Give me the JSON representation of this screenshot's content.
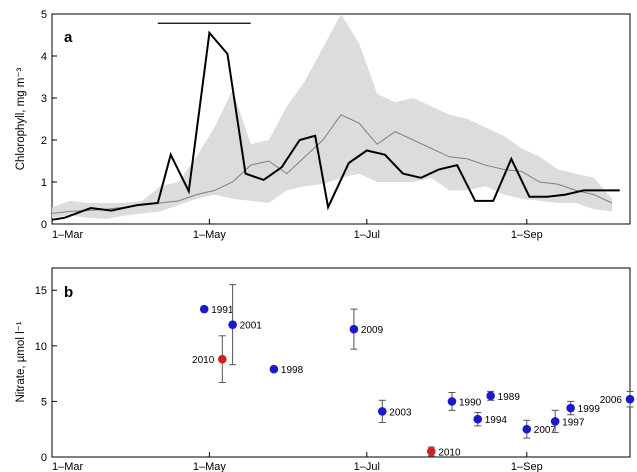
{
  "chart_data": [
    {
      "type": "line",
      "panel_label": "a",
      "ylabel": "Chlorophyll, mg m⁻³",
      "ylim": [
        0,
        5
      ],
      "yticks": [
        "0",
        "1",
        "2",
        "3",
        "4",
        "5"
      ],
      "xticks": [
        "1–Mar",
        "1–May",
        "1–Jul",
        "1–Sep"
      ],
      "xtick_days": [
        0,
        61,
        122,
        184
      ],
      "xlim_days": [
        0,
        224
      ],
      "bar_days": [
        41,
        77
      ],
      "bar_y": 4.78,
      "envelope": {
        "x_days": [
          0,
          7,
          14,
          21,
          28,
          35,
          42,
          49,
          56,
          63,
          70,
          77,
          84,
          91,
          98,
          105,
          112,
          119,
          126,
          133,
          140,
          147,
          154,
          161,
          168,
          175,
          182,
          189,
          196,
          203,
          210,
          217
        ],
        "upper": [
          0.4,
          0.55,
          0.5,
          0.5,
          0.5,
          0.55,
          0.9,
          1.0,
          1.6,
          2.3,
          3.2,
          1.9,
          2.0,
          2.8,
          3.4,
          4.2,
          5.0,
          4.3,
          3.1,
          2.9,
          3.0,
          2.8,
          2.6,
          2.5,
          2.3,
          2.1,
          1.8,
          1.6,
          1.3,
          1.2,
          1.1,
          0.6
        ],
        "lower": [
          0.15,
          0.2,
          0.15,
          0.12,
          0.2,
          0.25,
          0.3,
          0.45,
          0.6,
          0.7,
          0.6,
          0.55,
          0.5,
          0.8,
          0.9,
          0.95,
          1.1,
          1.2,
          1.0,
          1.0,
          1.0,
          1.1,
          0.8,
          0.8,
          0.9,
          0.7,
          0.6,
          0.55,
          0.5,
          0.5,
          0.35,
          0.3
        ]
      },
      "series": [
        {
          "x_days": [
            0,
            7,
            14,
            21,
            28,
            35,
            42,
            49,
            56,
            63,
            70,
            77,
            84,
            91,
            98,
            105,
            112,
            119,
            126,
            133,
            140,
            147,
            154,
            161,
            168,
            175,
            182,
            189,
            196,
            203,
            210,
            217
          ],
          "values": [
            0.25,
            0.3,
            0.32,
            0.35,
            0.4,
            0.45,
            0.5,
            0.55,
            0.7,
            0.8,
            1.0,
            1.4,
            1.5,
            1.2,
            1.6,
            2.0,
            2.6,
            2.4,
            1.9,
            2.2,
            2.0,
            1.8,
            1.6,
            1.55,
            1.4,
            1.3,
            1.25,
            1.0,
            0.95,
            0.8,
            0.7,
            0.5
          ]
        },
        {
          "x_days": [
            0,
            5,
            15,
            23,
            33,
            41,
            46,
            53,
            61,
            68,
            75,
            82,
            89,
            96,
            102,
            107,
            115,
            122,
            129,
            136,
            143,
            150,
            157,
            164,
            171,
            178,
            185,
            192,
            199,
            206,
            213,
            220
          ],
          "values": [
            0.1,
            0.15,
            0.38,
            0.32,
            0.45,
            0.5,
            1.65,
            0.78,
            4.55,
            4.05,
            1.2,
            1.05,
            1.35,
            2.0,
            2.1,
            0.4,
            1.45,
            1.75,
            1.65,
            1.2,
            1.1,
            1.3,
            1.4,
            0.55,
            0.55,
            1.55,
            0.65,
            0.65,
            0.7,
            0.8,
            0.8,
            0.8
          ]
        }
      ]
    },
    {
      "type": "scatter",
      "panel_label": "b",
      "ylabel": "Nitrate, µmol l⁻¹",
      "ylim": [
        0,
        17
      ],
      "yticks": [
        "0",
        "5",
        "10",
        "15"
      ],
      "xticks": [
        "1–Mar",
        "1–May",
        "1–Jul",
        "1–Sep"
      ],
      "xtick_days": [
        0,
        61,
        122,
        184
      ],
      "xlim_days": [
        0,
        224
      ],
      "colors": {
        "blue": "#1a1acc",
        "red": "#cc2222"
      },
      "points": [
        {
          "label": "1991",
          "x_day": 59,
          "y": 13.3,
          "err": 0,
          "color": "blue",
          "label_side": "right"
        },
        {
          "label": "2001",
          "x_day": 70,
          "y": 11.9,
          "err": 3.6,
          "color": "blue",
          "label_side": "right"
        },
        {
          "label": "2010",
          "x_day": 66,
          "y": 8.8,
          "err": 2.1,
          "color": "red",
          "label_side": "left"
        },
        {
          "label": "1998",
          "x_day": 86,
          "y": 7.9,
          "err": 0,
          "color": "blue",
          "label_side": "right"
        },
        {
          "label": "2009",
          "x_day": 117,
          "y": 11.5,
          "err": 1.8,
          "color": "blue",
          "label_side": "right"
        },
        {
          "label": "2003",
          "x_day": 128,
          "y": 4.1,
          "err": 1.0,
          "color": "blue",
          "label_side": "right"
        },
        {
          "label": "2010",
          "x_day": 147,
          "y": 0.5,
          "err": 0.4,
          "color": "red",
          "label_side": "right"
        },
        {
          "label": "1990",
          "x_day": 155,
          "y": 5.0,
          "err": 0.8,
          "color": "blue",
          "label_side": "right"
        },
        {
          "label": "1994",
          "x_day": 165,
          "y": 3.4,
          "err": 0.6,
          "color": "blue",
          "label_side": "right"
        },
        {
          "label": "1989",
          "x_day": 170,
          "y": 5.5,
          "err": 0.4,
          "color": "blue",
          "label_side": "right"
        },
        {
          "label": "2007",
          "x_day": 184,
          "y": 2.5,
          "err": 0.8,
          "color": "blue",
          "label_side": "right"
        },
        {
          "label": "1997",
          "x_day": 195,
          "y": 3.2,
          "err": 1.0,
          "color": "blue",
          "label_side": "right"
        },
        {
          "label": "1999",
          "x_day": 201,
          "y": 4.4,
          "err": 0.6,
          "color": "blue",
          "label_side": "right"
        },
        {
          "label": "2006",
          "x_day": 224,
          "y": 5.2,
          "err": 0.7,
          "color": "blue",
          "label_side": "left"
        }
      ]
    }
  ]
}
